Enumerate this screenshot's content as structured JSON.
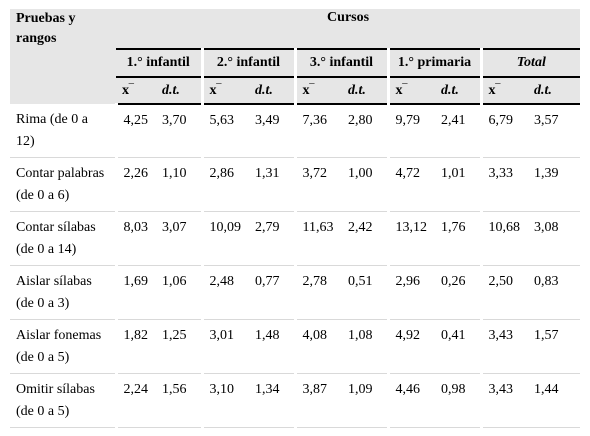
{
  "header": {
    "row_label": "Pruebas y rangos",
    "cursos": "Cursos",
    "groups": [
      "1.° infantil",
      "2.° infantil",
      "3.° infantil",
      "1.° primaria",
      "Total"
    ],
    "mean_label": "x‾",
    "sd_label": "d.t."
  },
  "rows": [
    {
      "label": "Rima (de 0 a 12)",
      "values": [
        "4,25",
        "3,70",
        "5,63",
        "3,49",
        "7,36",
        "2,80",
        "9,79",
        "2,41",
        "6,79",
        "3,57"
      ]
    },
    {
      "label": "Contar palabras (de 0 a 6)",
      "values": [
        "2,26",
        "1,10",
        "2,86",
        "1,31",
        "3,72",
        "1,00",
        "4,72",
        "1,01",
        "3,33",
        "1,39"
      ]
    },
    {
      "label": "Contar sílabas (de 0 a 14)",
      "values": [
        "8,03",
        "3,07",
        "10,09",
        "2,79",
        "11,63",
        "2,42",
        "13,12",
        "1,76",
        "10,68",
        "3,08"
      ]
    },
    {
      "label": "Aislar sílabas (de 0 a 3)",
      "values": [
        "1,69",
        "1,06",
        "2,48",
        "0,77",
        "2,78",
        "0,51",
        "2,96",
        "0,26",
        "2,50",
        "0,83"
      ]
    },
    {
      "label": "Aislar fonemas (de 0 a 5)",
      "values": [
        "1,82",
        "1,25",
        "3,01",
        "1,48",
        "4,08",
        "1,08",
        "4,92",
        "0,41",
        "3,43",
        "1,57"
      ]
    },
    {
      "label": "Omitir sílabas (de 0 a 5)",
      "values": [
        "2,24",
        "1,56",
        "3,10",
        "1,34",
        "3,87",
        "1,09",
        "4,46",
        "0,98",
        "3,43",
        "1,44"
      ]
    }
  ]
}
